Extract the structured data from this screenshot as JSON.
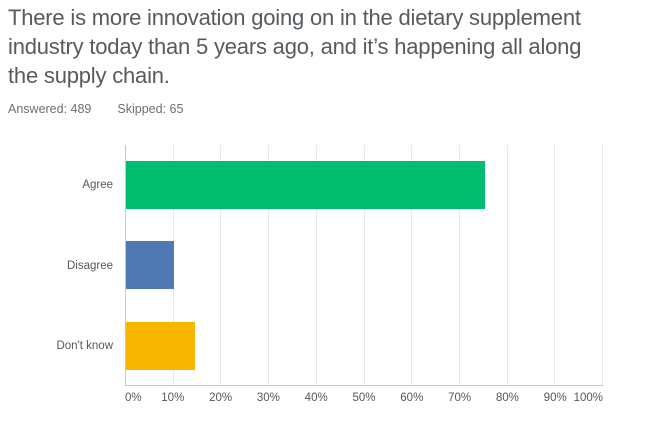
{
  "header": {
    "title": "There is more innovation going on in the dietary supplement industry today than 5 years ago, and it’s happening all along the supply chain.",
    "answered_label": "Answered: 489",
    "skipped_label": "Skipped: 65"
  },
  "chart_data": {
    "type": "bar",
    "orientation": "horizontal",
    "title": "There is more innovation going on in the dietary supplement industry today than 5 years ago, and it’s happening all along the supply chain.",
    "answered": 489,
    "skipped": 65,
    "categories": [
      "Agree",
      "Disagree",
      "Don't know"
    ],
    "values": [
      75.3,
      10,
      14.5
    ],
    "colors": [
      "#00bd70",
      "#5079b3",
      "#f7b600"
    ],
    "x_ticks": [
      "0%",
      "10%",
      "20%",
      "30%",
      "40%",
      "50%",
      "60%",
      "70%",
      "80%",
      "90%",
      "100%"
    ],
    "xlim": [
      0,
      100
    ],
    "grid": "vertical",
    "legend": "none",
    "gridline_color": "#e8e8e8",
    "axis_color": "#c6c6c6",
    "label_color": "#54585a"
  }
}
